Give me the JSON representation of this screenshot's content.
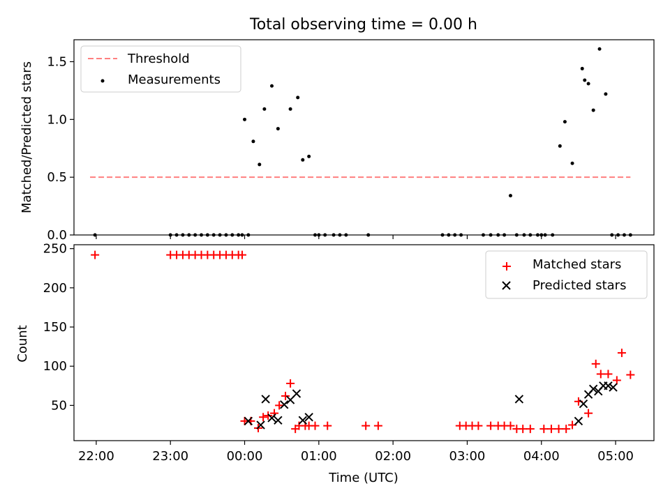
{
  "chart_data": [
    {
      "type": "scatter",
      "title": "Total observing time = 0.00 h",
      "ylabel": "Matched/Predicted stars",
      "xlabel": "",
      "xlim": [
        "21:42",
        "05:31"
      ],
      "ylim": [
        0,
        1.69
      ],
      "y_ticks": [
        0.0,
        0.5,
        1.0,
        1.5
      ],
      "y_tick_labels": [
        "0.0",
        "0.5",
        "1.0",
        "1.5"
      ],
      "legend_position": "top-left",
      "series": [
        {
          "name": "Threshold",
          "kind": "dashed-line",
          "color": "#ff7f7f",
          "x": [
            "21:55",
            "05:12"
          ],
          "y": [
            0.5,
            0.5
          ]
        },
        {
          "name": "Measurements",
          "kind": "dots",
          "color": "#000000",
          "x": [
            "21:59",
            "23:00",
            "23:05",
            "23:10",
            "23:15",
            "23:20",
            "23:25",
            "23:30",
            "23:35",
            "23:40",
            "23:45",
            "23:50",
            "23:55",
            "23:58",
            "00:00",
            "00:03",
            "00:07",
            "00:12",
            "00:16",
            "00:22",
            "00:27",
            "00:37",
            "00:43",
            "00:47",
            "00:52",
            "00:57",
            "01:00",
            "01:05",
            "01:12",
            "01:17",
            "01:22",
            "01:40",
            "02:40",
            "02:45",
            "02:50",
            "02:55",
            "03:13",
            "03:19",
            "03:25",
            "03:30",
            "03:35",
            "03:40",
            "03:46",
            "03:51",
            "03:57",
            "04:00",
            "04:03",
            "04:09",
            "04:15",
            "04:19",
            "04:25",
            "04:33",
            "04:35",
            "04:38",
            "04:42",
            "04:47",
            "04:52",
            "04:57",
            "05:02",
            "05:07",
            "05:12"
          ],
          "y": [
            0.0,
            0.0,
            0.0,
            0.0,
            0.0,
            0.0,
            0.0,
            0.0,
            0.0,
            0.0,
            0.0,
            0.0,
            0.0,
            0.0,
            1.0,
            0.0,
            0.81,
            0.61,
            1.09,
            1.29,
            0.92,
            1.09,
            1.19,
            0.65,
            0.68,
            0.0,
            0.0,
            0.0,
            0.0,
            0.0,
            0.0,
            0.0,
            0.0,
            0.0,
            0.0,
            0.0,
            0.0,
            0.0,
            0.0,
            0.0,
            0.34,
            0.0,
            0.0,
            0.0,
            0.0,
            0.0,
            0.0,
            0.0,
            0.77,
            0.98,
            0.62,
            1.44,
            1.34,
            1.31,
            1.08,
            1.61,
            1.22,
            0.0,
            0.0,
            0.0,
            0.0
          ]
        }
      ]
    },
    {
      "type": "scatter",
      "title": "",
      "xlabel": "Time (UTC)",
      "ylabel": "Count",
      "xlim": [
        "21:42",
        "05:31"
      ],
      "ylim": [
        5,
        255
      ],
      "x_ticks": [
        "22:00",
        "23:00",
        "00:00",
        "01:00",
        "02:00",
        "03:00",
        "04:00",
        "05:00"
      ],
      "y_ticks": [
        50,
        100,
        150,
        200,
        250
      ],
      "y_tick_labels": [
        "50",
        "100",
        "150",
        "200",
        "250"
      ],
      "legend_position": "top-right",
      "series": [
        {
          "name": "Matched stars",
          "marker": "plus",
          "color": "#ff0000",
          "x": [
            "21:59",
            "23:00",
            "23:05",
            "23:10",
            "23:15",
            "23:20",
            "23:25",
            "23:30",
            "23:35",
            "23:40",
            "23:45",
            "23:50",
            "23:55",
            "23:58",
            "00:00",
            "00:05",
            "00:11",
            "00:15",
            "00:19",
            "00:24",
            "00:28",
            "00:33",
            "00:37",
            "00:41",
            "00:44",
            "00:49",
            "00:52",
            "00:57",
            "01:07",
            "01:38",
            "01:48",
            "02:54",
            "02:59",
            "03:04",
            "03:09",
            "03:19",
            "03:25",
            "03:30",
            "03:35",
            "03:40",
            "03:45",
            "03:51",
            "04:02",
            "04:08",
            "04:14",
            "04:20",
            "04:25",
            "04:30",
            "04:38",
            "04:44",
            "04:48",
            "04:54",
            "05:01",
            "05:05",
            "05:12"
          ],
          "y": [
            242,
            242,
            242,
            242,
            242,
            242,
            242,
            242,
            242,
            242,
            242,
            242,
            242,
            242,
            30,
            30,
            21,
            35,
            37,
            40,
            50,
            62,
            78,
            20,
            24,
            24,
            24,
            24,
            24,
            24,
            24,
            24,
            24,
            24,
            24,
            24,
            24,
            24,
            24,
            20,
            20,
            20,
            20,
            20,
            20,
            20,
            25,
            55,
            40,
            103,
            90,
            90,
            82,
            117,
            89
          ]
        },
        {
          "name": "Predicted stars",
          "marker": "x",
          "color": "#000000",
          "x": [
            "00:03",
            "00:13",
            "00:17",
            "00:22",
            "00:27",
            "00:32",
            "00:37",
            "00:42",
            "00:47",
            "00:52",
            "03:42",
            "04:30",
            "04:34",
            "04:38",
            "04:42",
            "04:46",
            "04:50",
            "04:54",
            "04:58"
          ],
          "y": [
            30,
            25,
            58,
            34,
            31,
            51,
            57,
            65,
            31,
            35,
            58,
            30,
            52,
            64,
            71,
            68,
            75,
            75,
            73
          ]
        }
      ]
    }
  ]
}
